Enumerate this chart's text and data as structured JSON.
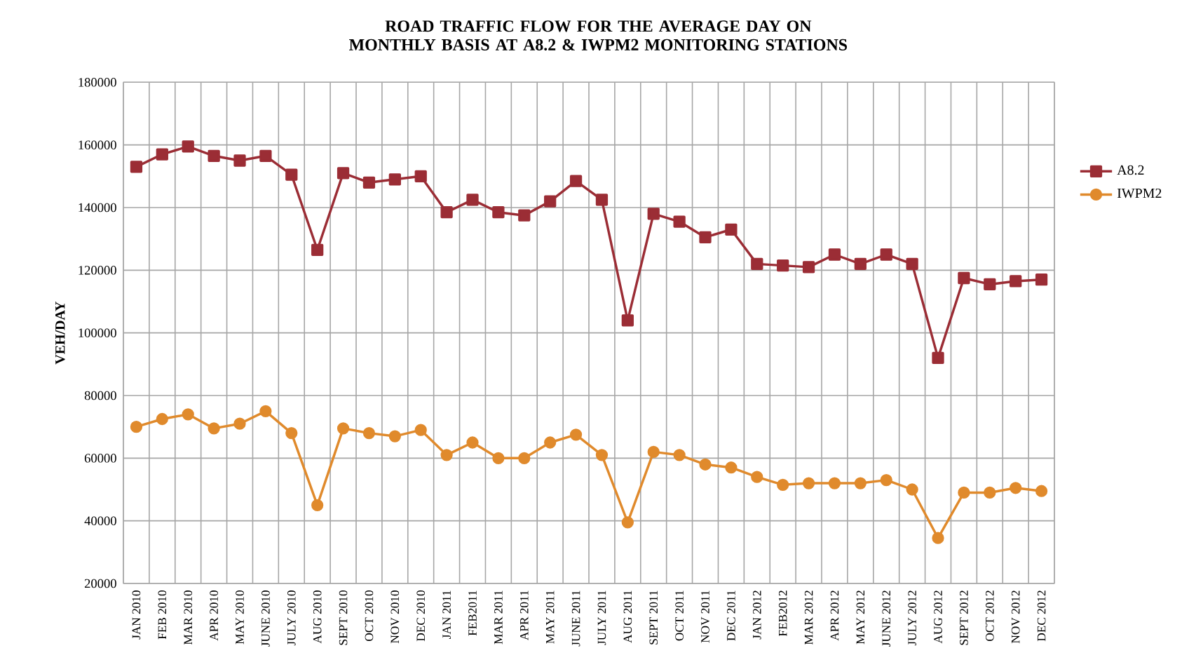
{
  "chart_data": {
    "type": "line",
    "title": "ROAD TRAFFIC FLOW FOR THE AVERAGE DAY ON MONTHLY BASIS  AT A8.2 & IWPM2 MONITORING STATIONS",
    "ylabel": "VEH/DAY",
    "categories": [
      "JAN 2010",
      "FEB 2010",
      "MAR 2010",
      "APR 2010",
      "MAY 2010",
      "JUNE 2010",
      "JULY 2010",
      "AUG 2010",
      "SEPT 2010",
      "OCT 2010",
      "NOV 2010",
      "DEC 2010",
      "JAN 2011",
      "FEB2011",
      "MAR 2011",
      "APR 2011",
      "MAY 2011",
      "JUNE 2011",
      "JULY 2011",
      "AUG 2011",
      "SEPT 2011",
      "OCT 2011",
      "NOV 2011",
      "DEC 2011",
      "JAN 2012",
      "FEB2012",
      "MAR 2012",
      "APR 2012",
      "MAY 2012",
      "JUNE 2012",
      "JULY 2012",
      "AUG 2012",
      "SEPT 2012",
      "OCT 2012",
      "NOV 2012",
      "DEC 2012"
    ],
    "series": [
      {
        "name": "A8.2",
        "color": "#9b2d35",
        "marker": "square",
        "values": [
          153000,
          157000,
          159500,
          156500,
          155000,
          156500,
          150500,
          126500,
          151000,
          148000,
          149000,
          150000,
          138500,
          142500,
          138500,
          137500,
          142000,
          148500,
          142500,
          104000,
          138000,
          135500,
          130500,
          133000,
          122000,
          121500,
          121000,
          125000,
          122000,
          125000,
          122000,
          92000,
          117500,
          115500,
          116500,
          117000
        ]
      },
      {
        "name": "IWPM2",
        "color": "#e08a2c",
        "marker": "circle",
        "values": [
          70000,
          72500,
          74000,
          69500,
          71000,
          75000,
          68000,
          45000,
          69500,
          68000,
          67000,
          69000,
          61000,
          65000,
          60000,
          60000,
          65000,
          67500,
          61000,
          39500,
          62000,
          61000,
          58000,
          57000,
          54000,
          51500,
          52000,
          52000,
          52000,
          53000,
          50000,
          34500,
          49000,
          49000,
          50500,
          49500
        ]
      }
    ],
    "ylim": [
      20000,
      180000
    ],
    "yticks": [
      20000,
      40000,
      60000,
      80000,
      100000,
      120000,
      140000,
      160000,
      180000
    ],
    "grid": true,
    "legend": "right",
    "line_style": "solid"
  }
}
